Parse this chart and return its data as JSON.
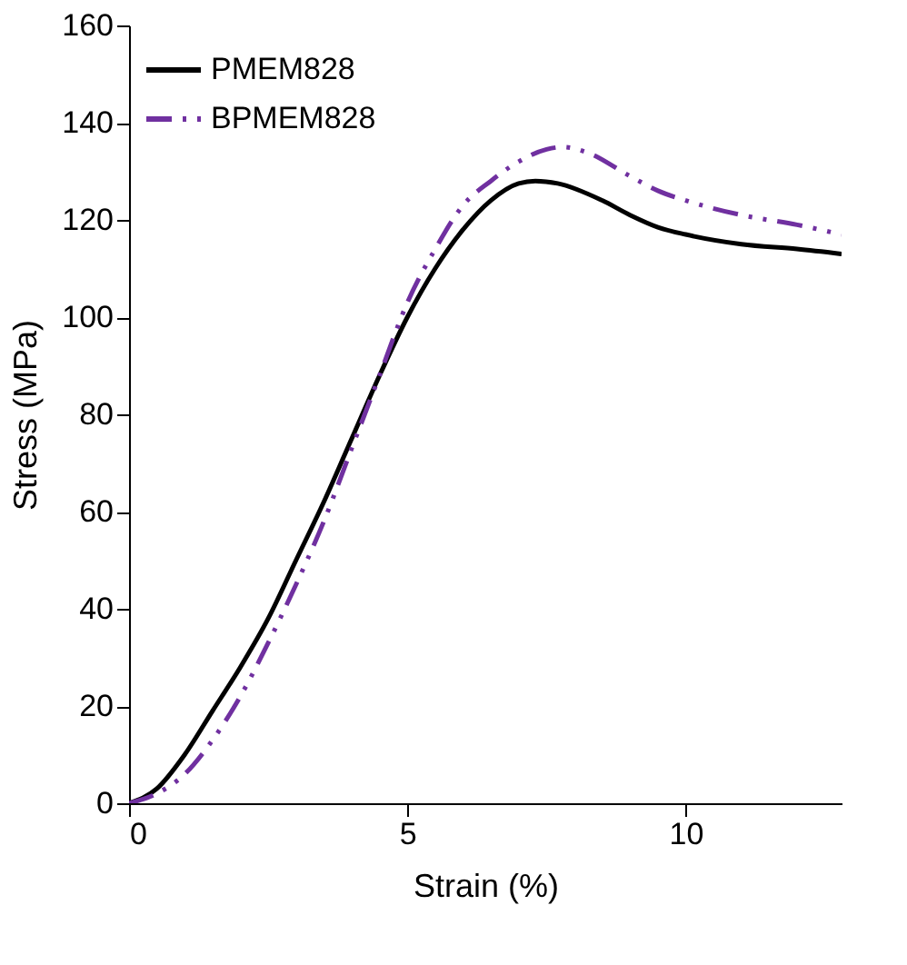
{
  "chart_data": {
    "type": "line",
    "xlabel": "Strain (%)",
    "ylabel": "Stress (MPa)",
    "xlim": [
      0,
      12.8
    ],
    "xticks": [
      0,
      5,
      10
    ],
    "ylim": [
      0,
      160
    ],
    "yticks": [
      0,
      20,
      40,
      60,
      80,
      100,
      120,
      140,
      160
    ],
    "grid": false,
    "legend": "top left",
    "marker": "none",
    "series": [
      {
        "name": "PMEM828",
        "color": "#000000",
        "line_style": "solid",
        "x": [
          0,
          0.5,
          1,
          1.5,
          2,
          2.5,
          3,
          3.5,
          4,
          4.5,
          5,
          5.5,
          6,
          6.5,
          7,
          7.3,
          7.7,
          8.5,
          9,
          9.5,
          10,
          11,
          12,
          12.8
        ],
        "values": [
          0,
          3,
          10,
          19,
          28,
          38,
          50,
          62,
          75,
          88,
          100,
          110,
          118,
          124,
          127.5,
          128,
          127.5,
          124,
          121,
          118.5,
          117,
          115,
          114,
          113
        ]
      },
      {
        "name": "BPMEM828",
        "color": "#7030a0",
        "line_style": "dashed",
        "x": [
          0,
          0.5,
          1,
          1.5,
          2,
          2.5,
          3,
          3.5,
          4,
          4.5,
          5,
          5.5,
          6,
          6.5,
          7,
          7.5,
          7.8,
          8.2,
          9,
          9.5,
          10,
          11,
          12,
          12.8
        ],
        "values": [
          0,
          2,
          6,
          13,
          22,
          33,
          45,
          58,
          73,
          88,
          103,
          114,
          123,
          128,
          132,
          134.5,
          135,
          134,
          129,
          126,
          124,
          121,
          119,
          117
        ]
      }
    ]
  }
}
